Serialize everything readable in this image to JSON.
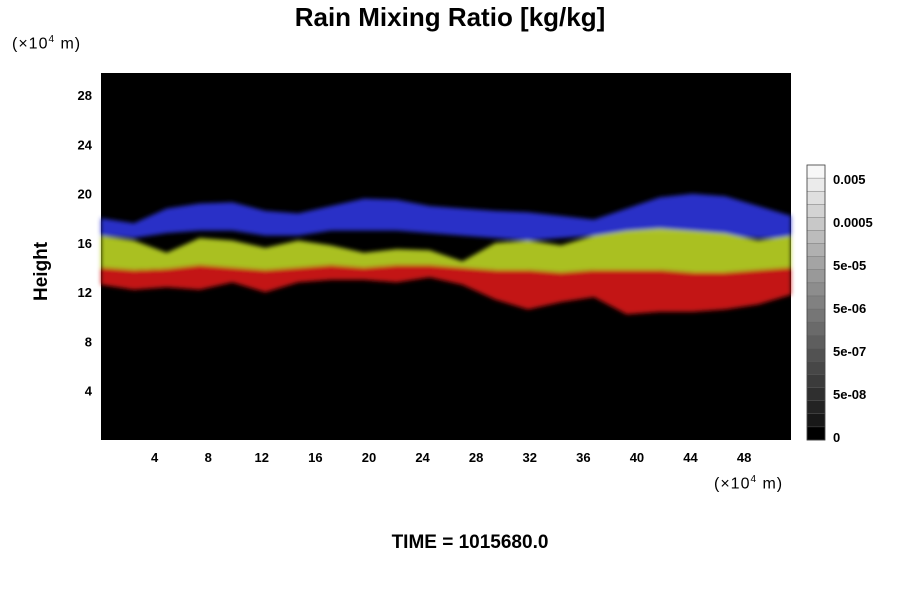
{
  "chart_data": {
    "type": "heatmap",
    "title": "Rain Mixing Ratio [kg/kg]",
    "ylabel": "Height",
    "xlabel": "",
    "x_unit_prefix": "(×10",
    "x_unit_exp": "4",
    "x_unit_suffix": " m)",
    "y_unit_prefix": "(×10",
    "y_unit_exp": "4",
    "y_unit_suffix": " m)",
    "time_label": "TIME = 1015680.0",
    "xlim": [
      0,
      51.5
    ],
    "ylim": [
      0,
      29.8
    ],
    "x_ticks": [
      "4",
      "8",
      "12",
      "16",
      "20",
      "24",
      "28",
      "32",
      "36",
      "40",
      "44",
      "48"
    ],
    "x_tick_values": [
      4,
      8,
      12,
      16,
      20,
      24,
      28,
      32,
      36,
      40,
      44,
      48
    ],
    "y_ticks": [
      "4",
      "8",
      "12",
      "16",
      "20",
      "24",
      "28"
    ],
    "y_tick_values": [
      4,
      8,
      12,
      16,
      20,
      24,
      28
    ],
    "colorbar": {
      "labels": [
        "0",
        "5e-08",
        "5e-07",
        "5e-06",
        "5e-05",
        "0.0005",
        "0.005"
      ],
      "levels": 21
    },
    "background_color": "#000000",
    "layers": [
      {
        "color": "#2a34d8",
        "description_color": "blue",
        "top": [
          18.0,
          17.6,
          18.8,
          19.2,
          19.3,
          18.6,
          18.4,
          19.0,
          19.6,
          19.5,
          19.0,
          18.8,
          18.6,
          18.5,
          18.2,
          17.9,
          18.8,
          19.7,
          20.0,
          19.8,
          19.0,
          18.2
        ],
        "bottom": [
          16.6,
          16.4,
          16.8,
          17.0,
          17.0,
          16.6,
          16.6,
          17.0,
          17.0,
          17.0,
          16.8,
          16.6,
          16.4,
          16.2,
          16.4,
          16.6,
          16.8,
          16.8,
          16.8,
          16.6,
          16.4,
          16.4
        ]
      },
      {
        "color": "#b9d024",
        "description_color": "yellow-green",
        "top": [
          16.6,
          16.2,
          15.2,
          16.4,
          16.2,
          15.6,
          16.2,
          15.8,
          15.2,
          15.5,
          15.4,
          14.5,
          16.0,
          16.2,
          15.8,
          16.6,
          17.0,
          17.2,
          17.0,
          16.8,
          16.2,
          16.6
        ],
        "bottom": [
          14.0,
          13.8,
          13.9,
          14.2,
          14.0,
          13.8,
          14.0,
          14.2,
          14.0,
          14.2,
          14.2,
          14.0,
          13.8,
          13.8,
          13.6,
          13.8,
          13.8,
          13.8,
          13.6,
          13.6,
          13.8,
          14.0
        ]
      },
      {
        "color": "#d41414",
        "description_color": "red",
        "top": [
          14.0,
          13.8,
          13.9,
          14.2,
          14.0,
          13.8,
          14.0,
          14.2,
          14.0,
          14.2,
          14.2,
          14.0,
          13.8,
          13.8,
          13.6,
          13.8,
          13.8,
          13.8,
          13.6,
          13.6,
          13.8,
          14.0
        ],
        "bottom": [
          12.6,
          12.2,
          12.4,
          12.2,
          12.8,
          12.0,
          12.8,
          13.0,
          13.0,
          12.8,
          13.2,
          12.6,
          11.4,
          10.6,
          11.2,
          11.6,
          10.2,
          10.4,
          10.4,
          10.6,
          11.0,
          11.8
        ]
      }
    ]
  }
}
